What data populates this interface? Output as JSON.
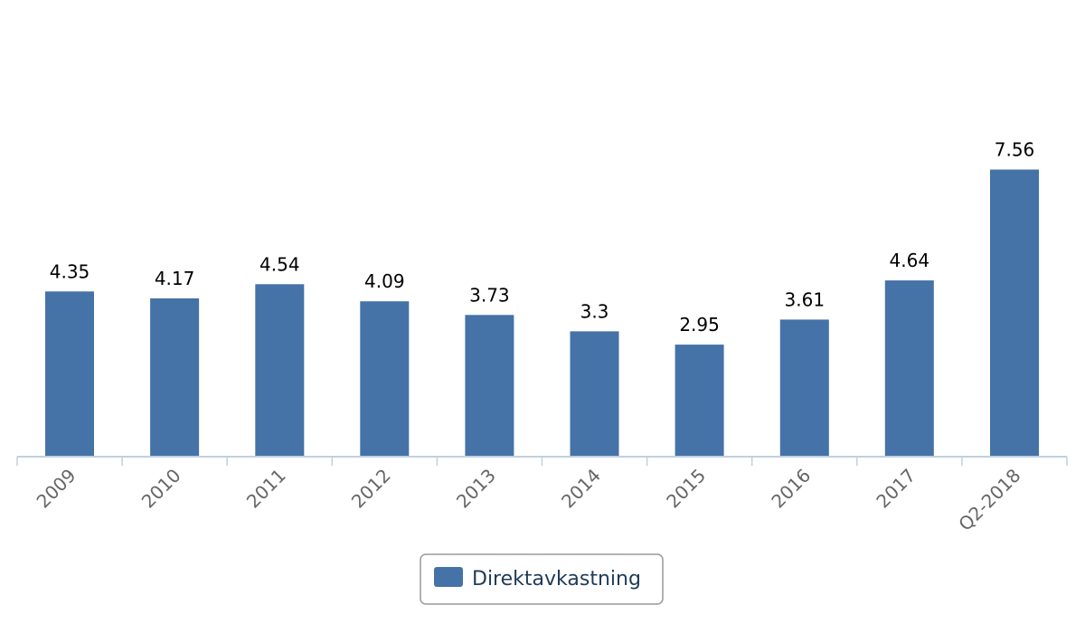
{
  "chart_data": {
    "type": "bar",
    "categories": [
      "2009",
      "2010",
      "2011",
      "2012",
      "2013",
      "2014",
      "2015",
      "2016",
      "2017",
      "Q2-2018"
    ],
    "series": [
      {
        "name": "Direktavkastning",
        "values": [
          4.35,
          4.17,
          4.54,
          4.09,
          3.73,
          3.3,
          2.95,
          3.61,
          4.64,
          7.56
        ],
        "color": "#4572a7"
      }
    ],
    "title": "",
    "xlabel": "",
    "ylabel": "",
    "ylim": [
      0,
      12
    ],
    "grid": false,
    "legend_position": "bottom-center",
    "data_labels": true
  }
}
